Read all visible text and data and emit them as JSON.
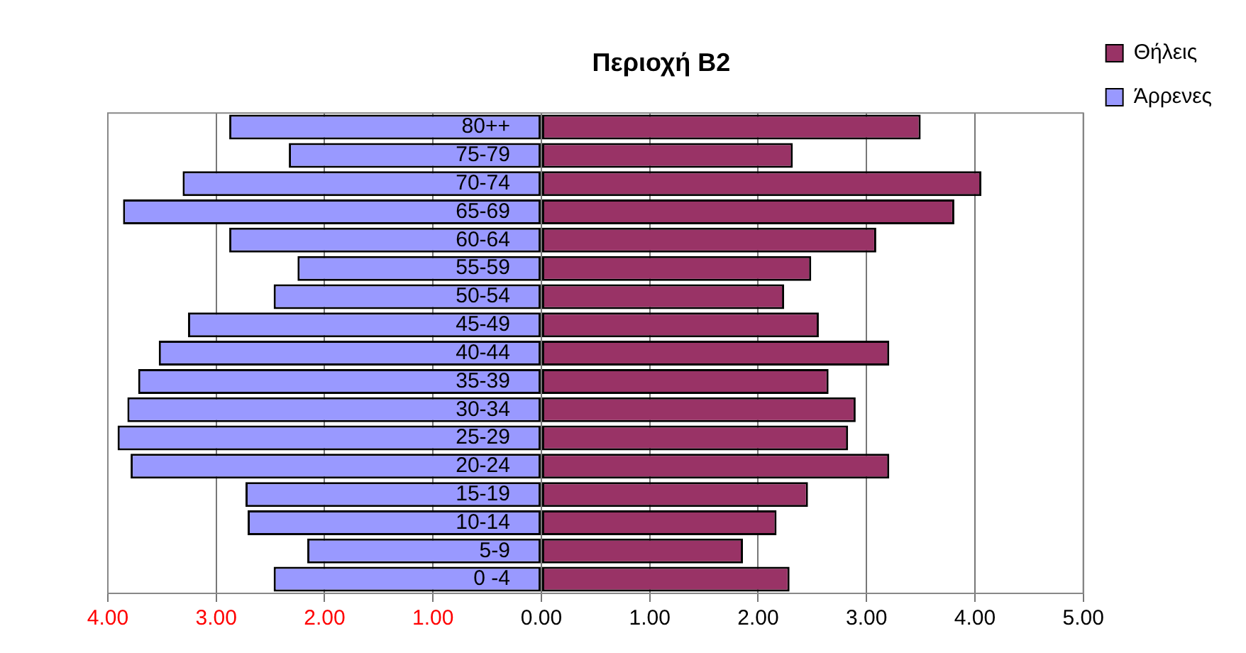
{
  "chart_data": {
    "type": "bar",
    "title": "Περιοχή B2",
    "orientation": "horizontal",
    "stacked": true,
    "categories": [
      "80++",
      "75-79",
      "70-74",
      "65-69",
      "60-64",
      "55-59",
      "50-54",
      "45-49",
      "40-44",
      "35-39",
      "30-34",
      "25-29",
      "20-24",
      "15-19",
      "10-14",
      "5-9",
      "0 -4"
    ],
    "series": [
      {
        "name": "Θήλεις",
        "color": "#993366",
        "values": [
          3.5,
          2.32,
          4.06,
          3.81,
          3.09,
          2.49,
          2.24,
          2.56,
          3.21,
          2.65,
          2.9,
          2.83,
          3.21,
          2.46,
          2.17,
          1.86,
          2.29
        ]
      },
      {
        "name": "Άρρενες",
        "color": "#9999ff",
        "values": [
          -2.88,
          -2.33,
          -3.31,
          -3.86,
          -2.88,
          -2.25,
          -2.47,
          -3.26,
          -3.53,
          -3.72,
          -3.82,
          -3.91,
          -3.79,
          -2.73,
          -2.71,
          -2.16,
          -2.47
        ]
      }
    ],
    "xlim": [
      -4,
      5
    ],
    "xticks": [
      {
        "value": -4,
        "label": "4.00"
      },
      {
        "value": -3,
        "label": "3.00"
      },
      {
        "value": -2,
        "label": "2.00"
      },
      {
        "value": -1,
        "label": "1.00"
      },
      {
        "value": 0,
        "label": "0.00"
      },
      {
        "value": 1,
        "label": "1.00"
      },
      {
        "value": 2,
        "label": "2.00"
      },
      {
        "value": 3,
        "label": "3.00"
      },
      {
        "value": 4,
        "label": "4.00"
      },
      {
        "value": 5,
        "label": "5.00"
      }
    ],
    "grid": "x",
    "legend": "top right"
  }
}
